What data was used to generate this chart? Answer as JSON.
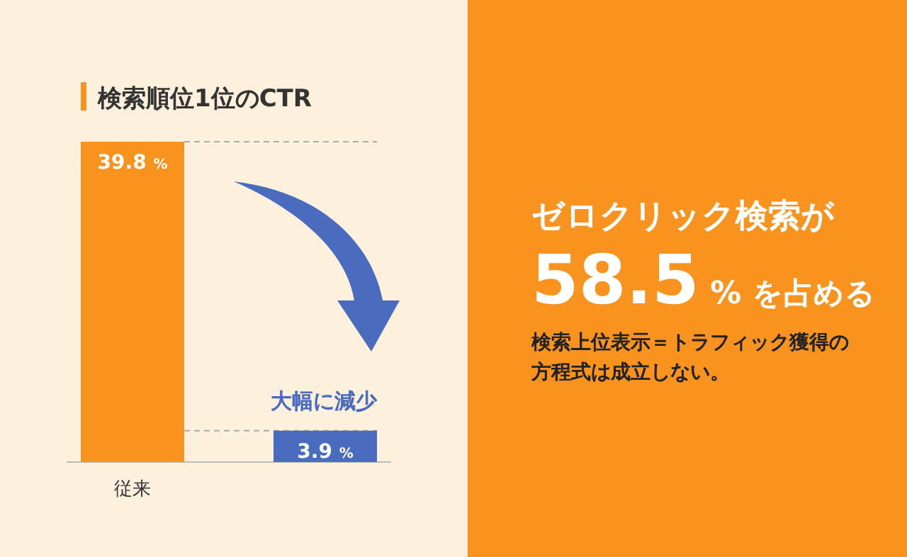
{
  "chart_data": [
    {
      "type": "bar",
      "title": "検索順位1位のCTR",
      "categories": [
        "従来",
        null
      ],
      "values": [
        39.8,
        3.9
      ],
      "colors": [
        "#f7931e",
        "#4a6cbf"
      ],
      "value_labels": [
        "39.8 %",
        "3.9 %"
      ],
      "ylim": [
        0,
        39.8
      ],
      "tick_labels": "x",
      "ref_lines": [
        {
          "axis": "y",
          "value": 39.8,
          "color": "#aaaaaa",
          "line_style": "dashed"
        },
        {
          "axis": "y",
          "value": 3.9,
          "color": "#aaaaaa",
          "line_style": "dashed"
        }
      ],
      "annotations": [
        "大幅に減少"
      ]
    },
    {
      "type": "other",
      "title": "ゼロクリック検索が58.5%を占める",
      "annotations": [
        "検索上位表示＝トラフィック獲得の方程式は成立しない。"
      ]
    }
  ]
}
